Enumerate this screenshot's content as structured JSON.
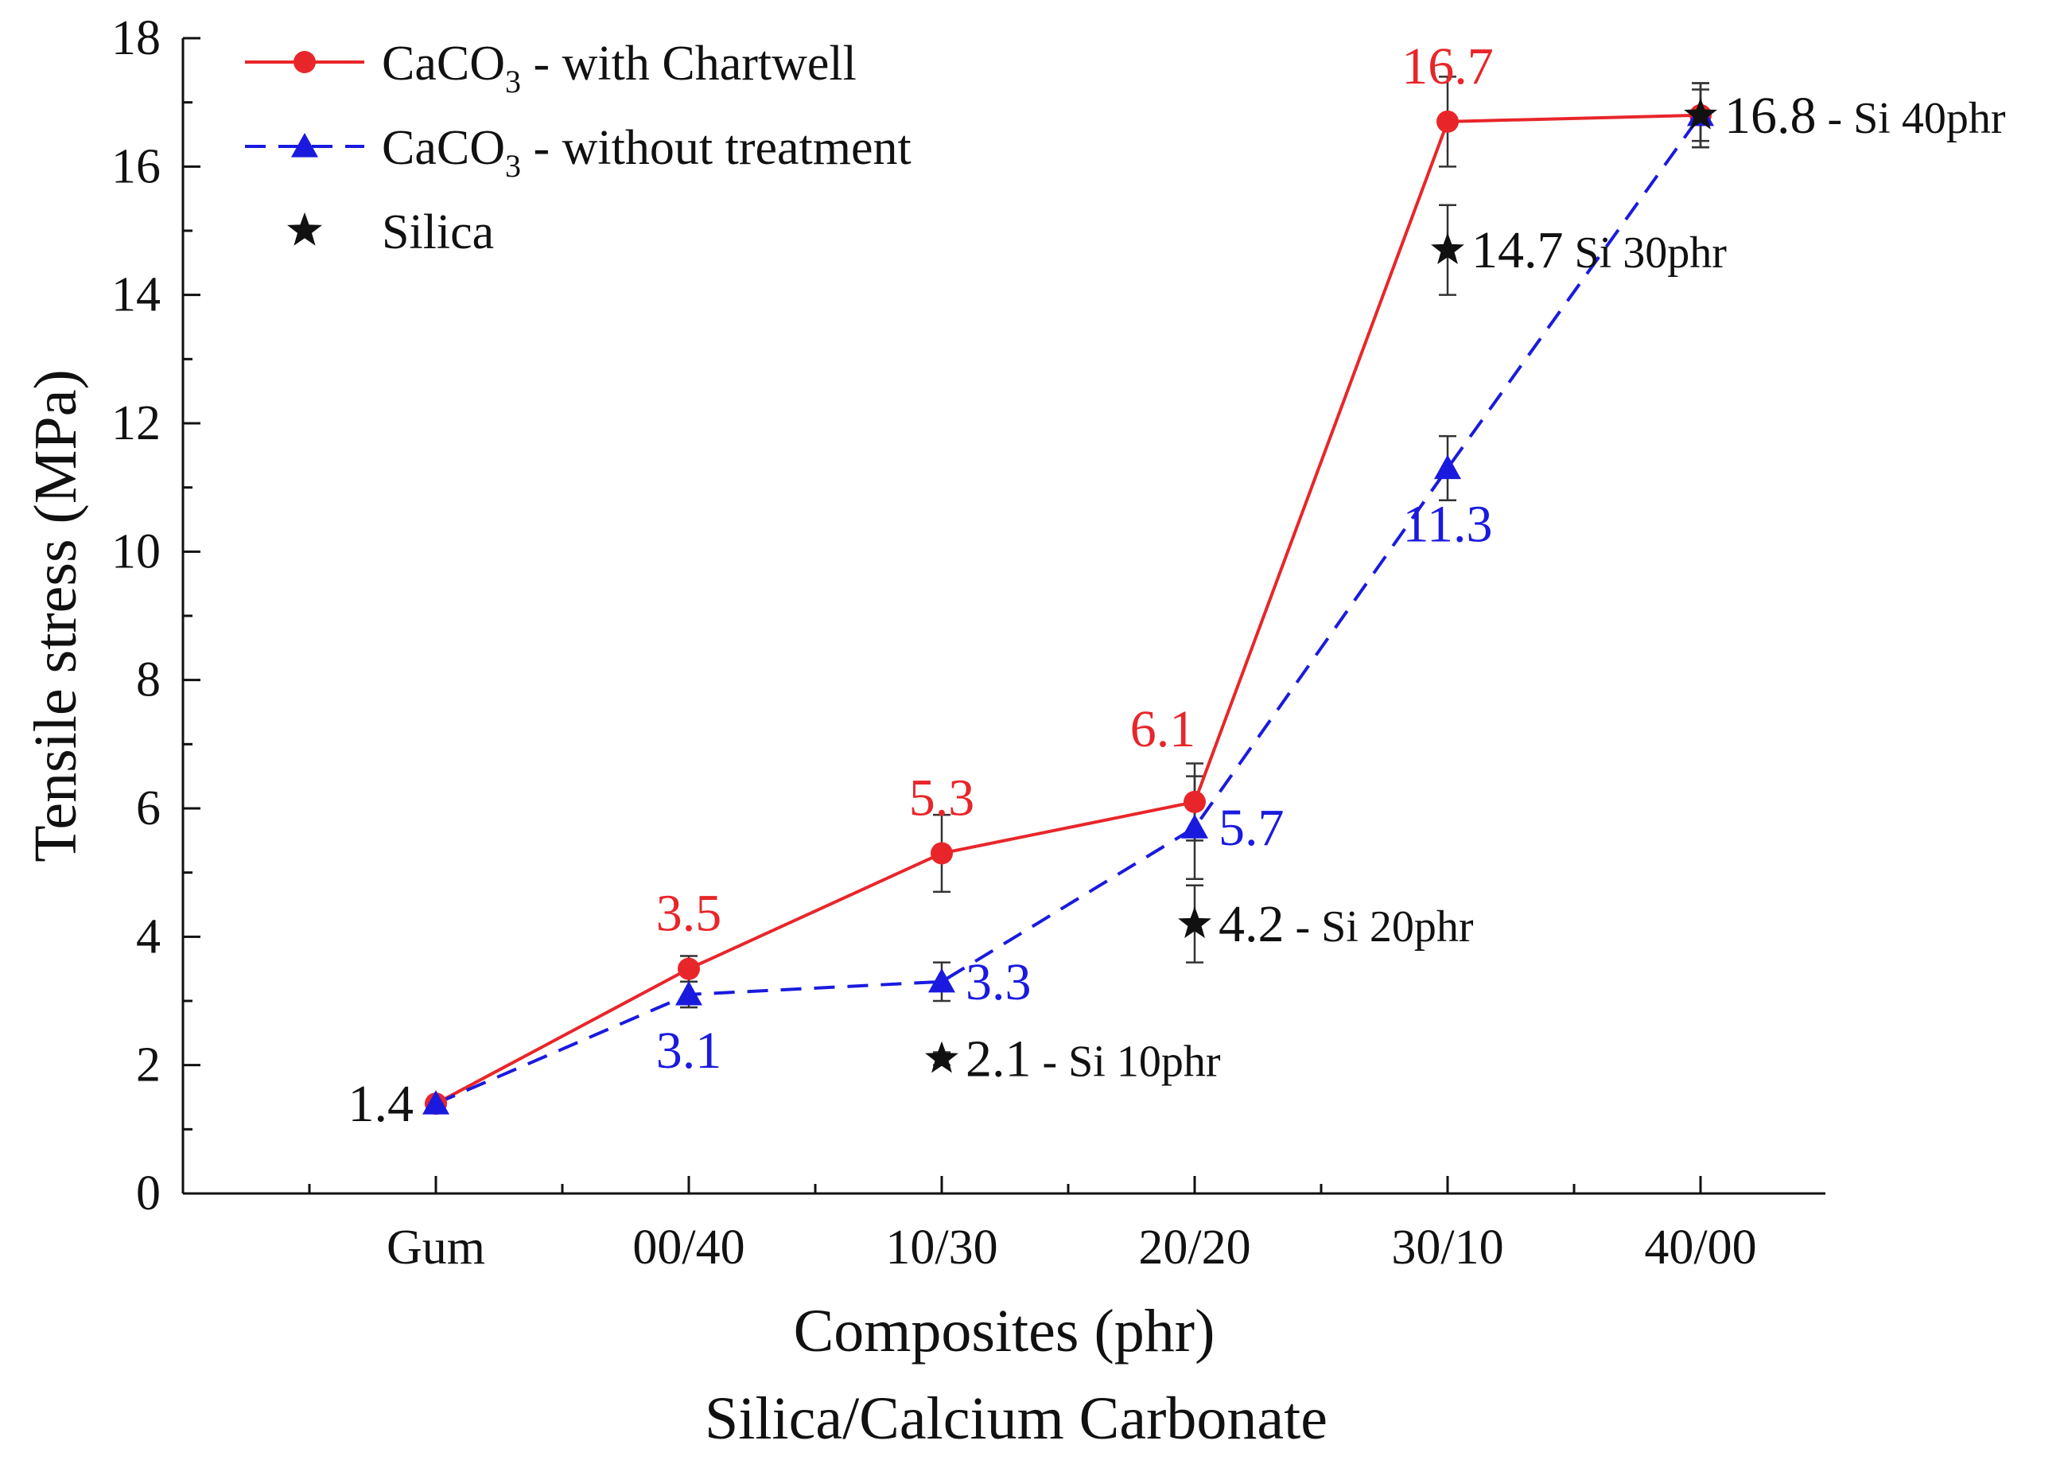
{
  "chart_data": {
    "type": "line",
    "xlabel": "Composites (phr)",
    "xlabel2": "Silica/Calcium Carbonate",
    "ylabel": "Tensile stress (MPa)",
    "ylim": [
      0,
      18
    ],
    "yticks": [
      0,
      2,
      4,
      6,
      8,
      10,
      12,
      14,
      16,
      18
    ],
    "categories": [
      "Gum",
      "00/40",
      "10/30",
      "20/20",
      "30/10",
      "40/00"
    ],
    "colors": {
      "red": "#e8262a",
      "blue": "#1a1adf",
      "black": "#111111"
    },
    "series": [
      {
        "name": "CaCO3 - with Chartwell",
        "legend": {
          "pre": "CaCO",
          "sub": "3",
          "post": " - with Chartwell"
        },
        "color": "#e8262a",
        "style": "solid",
        "marker": "circle",
        "values": [
          1.4,
          3.5,
          5.3,
          6.1,
          16.7,
          16.8
        ],
        "errors": [
          0,
          0.2,
          0.6,
          0.6,
          0.7,
          0.5
        ]
      },
      {
        "name": "CaCO3 - without treatment",
        "legend": {
          "pre": "CaCO",
          "sub": "3",
          "post": " - without treatment"
        },
        "color": "#1a1adf",
        "style": "dashed",
        "marker": "triangle",
        "values": [
          1.4,
          3.1,
          3.3,
          5.7,
          11.3,
          16.8
        ],
        "errors": [
          0,
          0.2,
          0.3,
          0.8,
          0.5,
          0.4
        ]
      },
      {
        "name": "Silica",
        "legend": {
          "pre": "Silica",
          "sub": "",
          "post": ""
        },
        "color": "#111111",
        "style": "none",
        "marker": "star",
        "points": [
          {
            "x": "10/30",
            "y": 2.1,
            "error": 0.1
          },
          {
            "x": "20/20",
            "y": 4.2,
            "error": 0.6
          },
          {
            "x": "30/10",
            "y": 14.7,
            "error": 0.7
          },
          {
            "x": "40/00",
            "y": 16.8,
            "error": 0.5
          }
        ]
      }
    ],
    "annotations": [
      {
        "text": "1.4",
        "x": "Gum",
        "y": 1.4,
        "color": "#111111",
        "place": "left",
        "size": "lg"
      },
      {
        "text": "3.5",
        "x": "00/40",
        "y": 3.5,
        "color": "#e8262a",
        "place": "above",
        "size": "lg"
      },
      {
        "text": "3.1",
        "x": "00/40",
        "y": 3.1,
        "color": "#1a1adf",
        "place": "below",
        "size": "lg"
      },
      {
        "text": "5.3",
        "x": "10/30",
        "y": 5.3,
        "color": "#e8262a",
        "place": "above",
        "size": "lg"
      },
      {
        "text": "3.3",
        "x": "10/30",
        "y": 3.3,
        "color": "#1a1adf",
        "place": "right",
        "size": "lg"
      },
      {
        "text": "6.1",
        "x": "20/20",
        "y": 6.1,
        "color": "#e8262a",
        "place": "above-left",
        "size": "lg"
      },
      {
        "text": "5.7",
        "x": "20/20",
        "y": 5.7,
        "color": "#1a1adf",
        "place": "right",
        "size": "lg"
      },
      {
        "text": "16.7",
        "x": "30/10",
        "y": 16.7,
        "color": "#e8262a",
        "place": "above",
        "size": "lg"
      },
      {
        "text": "11.3",
        "x": "30/10",
        "y": 11.3,
        "color": "#1a1adf",
        "place": "below",
        "size": "lg"
      },
      {
        "text": "2.1",
        "x": "10/30",
        "y": 2.1,
        "color": "#111111",
        "place": "right",
        "size": "lg",
        "suffix": " - Si 10phr"
      },
      {
        "text": "4.2",
        "x": "20/20",
        "y": 4.2,
        "color": "#111111",
        "place": "right",
        "size": "lg",
        "suffix": " - Si 20phr"
      },
      {
        "text": "14.7",
        "x": "30/10",
        "y": 14.7,
        "color": "#111111",
        "place": "right",
        "size": "lg",
        "suffix": " Si 30phr"
      },
      {
        "text": "16.8",
        "x": "40/00",
        "y": 16.8,
        "color": "#111111",
        "place": "right",
        "size": "lg",
        "suffix": " - Si 40phr"
      }
    ]
  }
}
